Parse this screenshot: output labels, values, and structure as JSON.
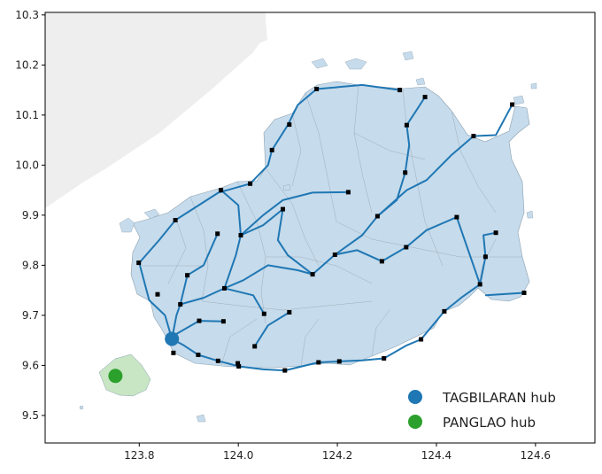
{
  "chart_data": {
    "type": "map",
    "title": "",
    "xlabel": "",
    "ylabel": "",
    "xlim": [
      123.61,
      124.72
    ],
    "ylim": [
      9.445,
      10.305
    ],
    "x_ticks": [
      "123.8",
      "124.0",
      "124.2",
      "124.4",
      "124.6"
    ],
    "y_ticks": [
      "9.5",
      "9.6",
      "9.7",
      "9.8",
      "9.9",
      "10.0",
      "10.1",
      "10.2",
      "10.3"
    ],
    "legend_position": "lower-right",
    "legend": [
      {
        "label": "TAGBILARAN hub",
        "color": "#1f77b4"
      },
      {
        "label": "PANGLAO hub",
        "color": "#2ca02c"
      }
    ],
    "hubs": [
      {
        "name": "TAGBILARAN hub",
        "lon": 123.866,
        "lat": 9.653,
        "color": "#1f77b4"
      },
      {
        "name": "PANGLAO hub",
        "lon": 123.752,
        "lat": 9.579,
        "color": "#2ca02c"
      }
    ],
    "colors": {
      "land": "#c6dbeb",
      "land_edge": "#8aa0b0",
      "background_land": "#eeeeee",
      "panglao_land": "#c8e6c4",
      "route": "#1f77b4",
      "node": "#000000"
    },
    "nodes": [
      [
        123.799,
        9.805
      ],
      [
        123.873,
        9.89
      ],
      [
        123.837,
        9.742
      ],
      [
        123.883,
        9.722
      ],
      [
        123.897,
        9.78
      ],
      [
        123.869,
        9.625
      ],
      [
        123.919,
        9.621
      ],
      [
        123.959,
        9.609
      ],
      [
        124.001,
        9.598
      ],
      [
        124.033,
        9.638
      ],
      [
        124.094,
        9.59
      ],
      [
        124.162,
        9.606
      ],
      [
        124.204,
        9.608
      ],
      [
        124.294,
        9.614
      ],
      [
        124.369,
        9.652
      ],
      [
        124.416,
        9.708
      ],
      [
        124.488,
        9.762
      ],
      [
        124.499,
        9.817
      ],
      [
        124.52,
        9.865
      ],
      [
        124.577,
        9.745
      ],
      [
        124.441,
        9.896
      ],
      [
        124.339,
        9.836
      ],
      [
        124.29,
        9.808
      ],
      [
        124.281,
        9.898
      ],
      [
        124.195,
        9.821
      ],
      [
        124.15,
        9.782
      ],
      [
        124.222,
        9.946
      ],
      [
        124.337,
        9.985
      ],
      [
        124.34,
        10.08
      ],
      [
        124.326,
        10.15
      ],
      [
        124.377,
        10.136
      ],
      [
        124.475,
        10.058
      ],
      [
        124.553,
        10.121
      ],
      [
        124.158,
        10.152
      ],
      [
        124.103,
        10.081
      ],
      [
        124.068,
        10.03
      ],
      [
        124.024,
        9.963
      ],
      [
        123.965,
        9.95
      ],
      [
        124.09,
        9.912
      ],
      [
        124.005,
        9.86
      ],
      [
        123.958,
        9.863
      ],
      [
        123.972,
        9.754
      ],
      [
        123.921,
        9.689
      ],
      [
        123.97,
        9.688
      ],
      [
        124.052,
        9.703
      ],
      [
        124.103,
        9.706
      ],
      [
        123.999,
        9.604
      ]
    ],
    "routes": [
      [
        [
          123.866,
          9.653
        ],
        [
          123.852,
          9.7
        ],
        [
          123.82,
          9.73
        ],
        [
          123.8,
          9.805
        ],
        [
          123.84,
          9.85
        ],
        [
          123.873,
          9.89
        ],
        [
          123.96,
          9.945
        ],
        [
          124.024,
          9.963
        ],
        [
          124.06,
          10.0
        ],
        [
          124.068,
          10.03
        ],
        [
          124.1,
          10.08
        ],
        [
          124.12,
          10.12
        ],
        [
          124.158,
          10.152
        ],
        [
          124.25,
          10.16
        ],
        [
          124.326,
          10.15
        ]
      ],
      [
        [
          123.866,
          9.653
        ],
        [
          123.89,
          9.64
        ],
        [
          123.919,
          9.621
        ],
        [
          123.959,
          9.609
        ],
        [
          124.001,
          9.598
        ],
        [
          124.05,
          9.592
        ],
        [
          124.094,
          9.59
        ],
        [
          124.162,
          9.606
        ],
        [
          124.204,
          9.608
        ],
        [
          124.25,
          9.61
        ],
        [
          124.294,
          9.614
        ],
        [
          124.34,
          9.64
        ],
        [
          124.369,
          9.652
        ],
        [
          124.416,
          9.708
        ],
        [
          124.45,
          9.735
        ],
        [
          124.488,
          9.762
        ],
        [
          124.499,
          9.817
        ],
        [
          124.495,
          9.86
        ],
        [
          124.52,
          9.865
        ]
      ],
      [
        [
          123.866,
          9.653
        ],
        [
          123.875,
          9.7
        ],
        [
          123.883,
          9.722
        ],
        [
          123.897,
          9.78
        ],
        [
          123.93,
          9.8
        ],
        [
          123.958,
          9.863
        ]
      ],
      [
        [
          123.87,
          9.66
        ],
        [
          123.921,
          9.689
        ],
        [
          123.97,
          9.688
        ]
      ],
      [
        [
          123.883,
          9.722
        ],
        [
          123.93,
          9.735
        ],
        [
          123.972,
          9.754
        ],
        [
          124.03,
          9.74
        ],
        [
          124.052,
          9.703
        ]
      ],
      [
        [
          123.972,
          9.754
        ],
        [
          124.01,
          9.77
        ],
        [
          124.06,
          9.8
        ],
        [
          124.12,
          9.79
        ],
        [
          124.15,
          9.782
        ]
      ],
      [
        [
          123.972,
          9.754
        ],
        [
          123.995,
          9.82
        ],
        [
          124.005,
          9.86
        ],
        [
          124.05,
          9.88
        ],
        [
          124.09,
          9.912
        ],
        [
          124.08,
          9.85
        ],
        [
          124.1,
          9.82
        ],
        [
          124.15,
          9.782
        ],
        [
          124.195,
          9.821
        ],
        [
          124.24,
          9.83
        ],
        [
          124.29,
          9.808
        ],
        [
          124.339,
          9.836
        ],
        [
          124.38,
          9.87
        ],
        [
          124.441,
          9.896
        ],
        [
          124.488,
          9.762
        ]
      ],
      [
        [
          124.195,
          9.821
        ],
        [
          124.25,
          9.86
        ],
        [
          124.281,
          9.898
        ],
        [
          124.32,
          9.93
        ],
        [
          124.337,
          9.985
        ],
        [
          124.345,
          10.04
        ],
        [
          124.34,
          10.08
        ],
        [
          124.36,
          10.11
        ],
        [
          124.377,
          10.136
        ]
      ],
      [
        [
          124.281,
          9.898
        ],
        [
          124.34,
          9.95
        ],
        [
          124.38,
          9.97
        ],
        [
          124.43,
          10.02
        ],
        [
          124.475,
          10.058
        ],
        [
          124.52,
          10.06
        ],
        [
          124.553,
          10.121
        ]
      ],
      [
        [
          124.005,
          9.86
        ],
        [
          124.05,
          9.9
        ],
        [
          124.09,
          9.93
        ],
        [
          124.15,
          9.945
        ],
        [
          124.222,
          9.946
        ]
      ],
      [
        [
          123.965,
          9.95
        ],
        [
          124.0,
          9.92
        ],
        [
          124.005,
          9.86
        ]
      ],
      [
        [
          124.033,
          9.638
        ],
        [
          124.06,
          9.68
        ],
        [
          124.103,
          9.706
        ]
      ],
      [
        [
          124.5,
          9.74
        ],
        [
          124.577,
          9.745
        ]
      ]
    ]
  }
}
